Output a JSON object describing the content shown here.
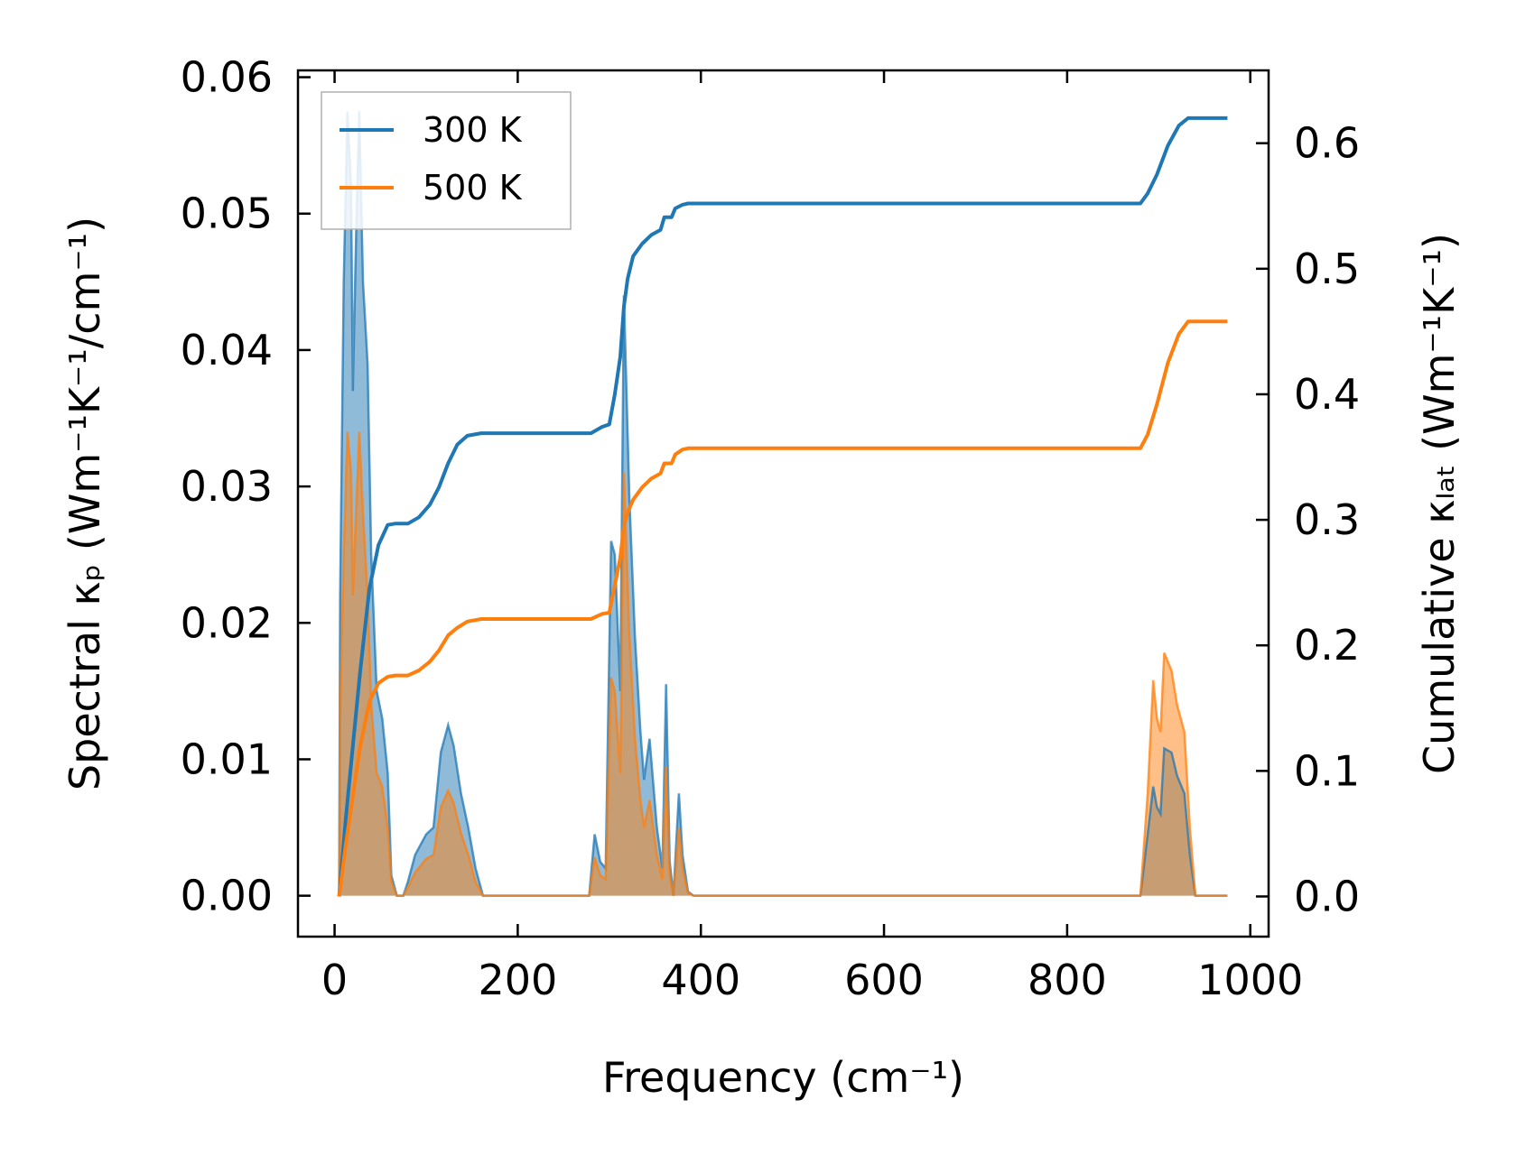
{
  "chart_data": {
    "type": "line",
    "x_axis": {
      "label": "Frequency (cm⁻¹)",
      "range": [
        -40,
        1020
      ],
      "ticks": [
        0,
        200,
        400,
        600,
        800,
        1000
      ],
      "tick_labels": [
        "0",
        "200",
        "400",
        "600",
        "800",
        "1000"
      ]
    },
    "y_axis_left": {
      "label": "Spectral κₚ (Wm⁻¹K⁻¹/cm⁻¹)",
      "range": [
        -0.003,
        0.0605
      ],
      "ticks": [
        0,
        0.01,
        0.02,
        0.03,
        0.04,
        0.05,
        0.06
      ],
      "tick_labels": [
        "0.00",
        "0.01",
        "0.02",
        "0.03",
        "0.04",
        "0.05",
        "0.06"
      ]
    },
    "y_axis_right": {
      "label": "Cumulative κₗₐₜ (Wm⁻¹K⁻¹)",
      "range": [
        -0.032,
        0.658
      ],
      "ticks": [
        0,
        0.1,
        0.2,
        0.3,
        0.4,
        0.5,
        0.6
      ],
      "tick_labels": [
        "0.0",
        "0.1",
        "0.2",
        "0.3",
        "0.4",
        "0.5",
        "0.6"
      ]
    },
    "legend": {
      "position": "top-left",
      "entries": [
        "300 K",
        "500 K"
      ]
    },
    "grid": false,
    "series": [
      {
        "name": "300 K",
        "color": "#1f77b4",
        "spectral": [
          [
            5,
            0.0
          ],
          [
            6,
            0.022
          ],
          [
            10,
            0.045
          ],
          [
            14,
            0.0575
          ],
          [
            18,
            0.052
          ],
          [
            20,
            0.037
          ],
          [
            24,
            0.05
          ],
          [
            27,
            0.0575
          ],
          [
            31,
            0.045
          ],
          [
            36,
            0.039
          ],
          [
            40,
            0.025
          ],
          [
            46,
            0.015
          ],
          [
            52,
            0.013
          ],
          [
            58,
            0.009
          ],
          [
            62,
            0.0015
          ],
          [
            68,
            0.0
          ],
          [
            75,
            0.0
          ],
          [
            80,
            0.001
          ],
          [
            88,
            0.003
          ],
          [
            100,
            0.0045
          ],
          [
            108,
            0.005
          ],
          [
            116,
            0.0105
          ],
          [
            124,
            0.0125
          ],
          [
            130,
            0.011
          ],
          [
            138,
            0.0075
          ],
          [
            146,
            0.005
          ],
          [
            154,
            0.002
          ],
          [
            162,
            0.0
          ],
          [
            200,
            0.0
          ],
          [
            250,
            0.0
          ],
          [
            278,
            0.0
          ],
          [
            284,
            0.0045
          ],
          [
            290,
            0.0025
          ],
          [
            296,
            0.002
          ],
          [
            302,
            0.026
          ],
          [
            306,
            0.025
          ],
          [
            312,
            0.015
          ],
          [
            316,
            0.044
          ],
          [
            322,
            0.029
          ],
          [
            328,
            0.019
          ],
          [
            334,
            0.012
          ],
          [
            338,
            0.0085
          ],
          [
            344,
            0.0115
          ],
          [
            352,
            0.005
          ],
          [
            358,
            0.002
          ],
          [
            362,
            0.0155
          ],
          [
            366,
            0.0025
          ],
          [
            370,
            0.0
          ],
          [
            376,
            0.0075
          ],
          [
            380,
            0.003
          ],
          [
            386,
            0.0003
          ],
          [
            392,
            0.0
          ],
          [
            500,
            0.0
          ],
          [
            700,
            0.0
          ],
          [
            880,
            0.0
          ],
          [
            888,
            0.0045
          ],
          [
            894,
            0.008
          ],
          [
            898,
            0.0065
          ],
          [
            902,
            0.006
          ],
          [
            906,
            0.0108
          ],
          [
            914,
            0.0105
          ],
          [
            920,
            0.0088
          ],
          [
            928,
            0.0075
          ],
          [
            934,
            0.003
          ],
          [
            940,
            0.0
          ],
          [
            975,
            0.0
          ]
        ],
        "cumulative": [
          [
            5,
            0.0
          ],
          [
            12,
            0.06
          ],
          [
            20,
            0.12
          ],
          [
            28,
            0.18
          ],
          [
            38,
            0.245
          ],
          [
            48,
            0.28
          ],
          [
            58,
            0.296
          ],
          [
            66,
            0.297
          ],
          [
            80,
            0.297
          ],
          [
            92,
            0.302
          ],
          [
            104,
            0.312
          ],
          [
            114,
            0.326
          ],
          [
            124,
            0.345
          ],
          [
            134,
            0.36
          ],
          [
            145,
            0.367
          ],
          [
            160,
            0.369
          ],
          [
            200,
            0.369
          ],
          [
            280,
            0.369
          ],
          [
            292,
            0.374
          ],
          [
            300,
            0.376
          ],
          [
            306,
            0.4
          ],
          [
            312,
            0.43
          ],
          [
            316,
            0.47
          ],
          [
            320,
            0.492
          ],
          [
            326,
            0.51
          ],
          [
            336,
            0.52
          ],
          [
            346,
            0.527
          ],
          [
            356,
            0.531
          ],
          [
            360,
            0.541
          ],
          [
            368,
            0.541
          ],
          [
            372,
            0.548
          ],
          [
            380,
            0.551
          ],
          [
            386,
            0.552
          ],
          [
            400,
            0.552
          ],
          [
            600,
            0.552
          ],
          [
            880,
            0.552
          ],
          [
            888,
            0.56
          ],
          [
            898,
            0.575
          ],
          [
            910,
            0.598
          ],
          [
            922,
            0.614
          ],
          [
            932,
            0.62
          ],
          [
            950,
            0.62
          ],
          [
            975,
            0.62
          ]
        ]
      },
      {
        "name": "500 K",
        "color": "#ff7f0e",
        "spectral": [
          [
            5,
            0.0
          ],
          [
            6,
            0.013
          ],
          [
            10,
            0.025
          ],
          [
            14,
            0.034
          ],
          [
            18,
            0.031
          ],
          [
            20,
            0.022
          ],
          [
            24,
            0.029
          ],
          [
            27,
            0.034
          ],
          [
            31,
            0.028
          ],
          [
            36,
            0.022
          ],
          [
            40,
            0.014
          ],
          [
            46,
            0.009
          ],
          [
            52,
            0.008
          ],
          [
            58,
            0.005
          ],
          [
            62,
            0.001
          ],
          [
            68,
            0.0
          ],
          [
            75,
            0.0
          ],
          [
            80,
            0.0006
          ],
          [
            88,
            0.0017
          ],
          [
            100,
            0.0027
          ],
          [
            108,
            0.003
          ],
          [
            116,
            0.0065
          ],
          [
            124,
            0.0077
          ],
          [
            130,
            0.0068
          ],
          [
            138,
            0.0046
          ],
          [
            146,
            0.003
          ],
          [
            154,
            0.001
          ],
          [
            162,
            0.0
          ],
          [
            200,
            0.0
          ],
          [
            250,
            0.0
          ],
          [
            278,
            0.0
          ],
          [
            284,
            0.0028
          ],
          [
            290,
            0.0015
          ],
          [
            296,
            0.0012
          ],
          [
            302,
            0.016
          ],
          [
            306,
            0.015
          ],
          [
            312,
            0.009
          ],
          [
            316,
            0.031
          ],
          [
            322,
            0.019
          ],
          [
            328,
            0.0115
          ],
          [
            334,
            0.007
          ],
          [
            338,
            0.005
          ],
          [
            344,
            0.007
          ],
          [
            352,
            0.003
          ],
          [
            358,
            0.0012
          ],
          [
            362,
            0.0095
          ],
          [
            366,
            0.0015
          ],
          [
            370,
            0.0
          ],
          [
            376,
            0.005
          ],
          [
            380,
            0.002
          ],
          [
            386,
            0.0002
          ],
          [
            392,
            0.0
          ],
          [
            500,
            0.0
          ],
          [
            700,
            0.0
          ],
          [
            880,
            0.0
          ],
          [
            888,
            0.0075
          ],
          [
            894,
            0.0158
          ],
          [
            898,
            0.013
          ],
          [
            902,
            0.012
          ],
          [
            906,
            0.0178
          ],
          [
            914,
            0.0165
          ],
          [
            920,
            0.014
          ],
          [
            928,
            0.012
          ],
          [
            934,
            0.005
          ],
          [
            940,
            0.0
          ],
          [
            975,
            0.0
          ]
        ],
        "cumulative": [
          [
            5,
            0.0
          ],
          [
            12,
            0.04
          ],
          [
            20,
            0.08
          ],
          [
            28,
            0.12
          ],
          [
            38,
            0.155
          ],
          [
            48,
            0.17
          ],
          [
            58,
            0.175
          ],
          [
            66,
            0.176
          ],
          [
            80,
            0.176
          ],
          [
            92,
            0.18
          ],
          [
            104,
            0.187
          ],
          [
            114,
            0.196
          ],
          [
            124,
            0.208
          ],
          [
            134,
            0.214
          ],
          [
            145,
            0.219
          ],
          [
            160,
            0.221
          ],
          [
            200,
            0.221
          ],
          [
            280,
            0.221
          ],
          [
            292,
            0.225
          ],
          [
            300,
            0.226
          ],
          [
            306,
            0.248
          ],
          [
            312,
            0.27
          ],
          [
            316,
            0.295
          ],
          [
            320,
            0.306
          ],
          [
            326,
            0.316
          ],
          [
            336,
            0.326
          ],
          [
            346,
            0.333
          ],
          [
            356,
            0.337
          ],
          [
            360,
            0.345
          ],
          [
            368,
            0.345
          ],
          [
            372,
            0.352
          ],
          [
            380,
            0.356
          ],
          [
            386,
            0.357
          ],
          [
            400,
            0.357
          ],
          [
            600,
            0.357
          ],
          [
            880,
            0.357
          ],
          [
            888,
            0.368
          ],
          [
            898,
            0.392
          ],
          [
            910,
            0.425
          ],
          [
            922,
            0.448
          ],
          [
            932,
            0.458
          ],
          [
            950,
            0.458
          ],
          [
            975,
            0.458
          ]
        ]
      }
    ]
  }
}
